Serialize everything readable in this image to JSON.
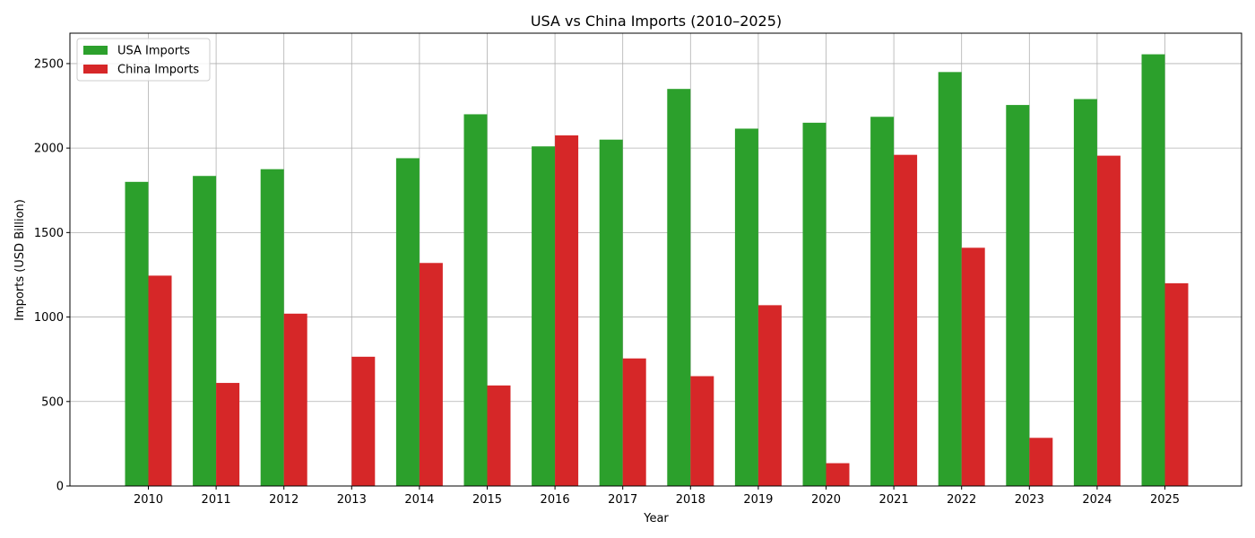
{
  "chart_data": {
    "type": "bar",
    "title": "USA vs China Imports (2010–2025)",
    "xlabel": "Year",
    "ylabel": "Imports (USD Billion)",
    "categories": [
      "2010",
      "2011",
      "2012",
      "2013",
      "2014",
      "2015",
      "2016",
      "2017",
      "2018",
      "2019",
      "2020",
      "2021",
      "2022",
      "2023",
      "2024",
      "2025"
    ],
    "series": [
      {
        "name": "USA Imports",
        "color": "#2ca02c",
        "values": [
          1800,
          1835,
          1875,
          0,
          1940,
          2200,
          2010,
          2050,
          2350,
          2115,
          2150,
          2185,
          2450,
          2255,
          2290,
          2555
        ]
      },
      {
        "name": "China Imports",
        "color": "#d62728",
        "values": [
          1245,
          610,
          1020,
          765,
          1320,
          595,
          2075,
          755,
          650,
          1070,
          135,
          1960,
          1410,
          285,
          1955,
          1200
        ]
      }
    ],
    "ylim": [
      0,
      2680
    ],
    "yticks": [
      0,
      500,
      1000,
      1500,
      2000,
      2500
    ],
    "grid": true,
    "legend_position": "top-left"
  }
}
